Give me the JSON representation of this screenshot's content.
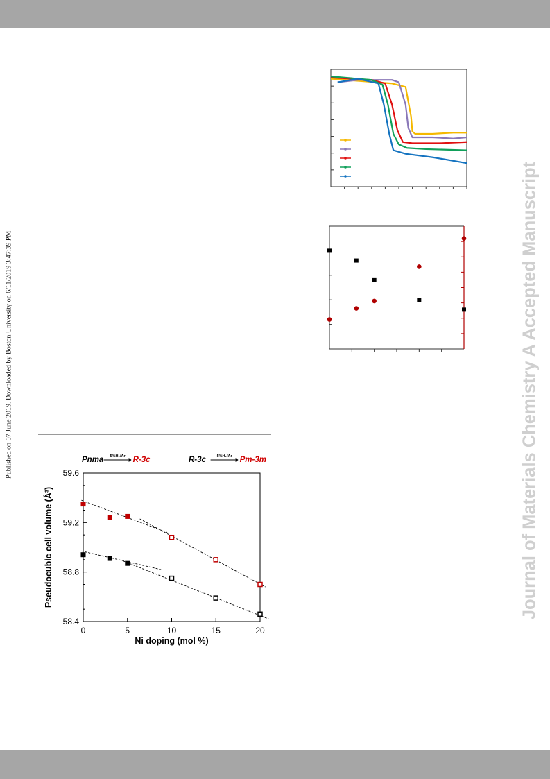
{
  "header": {},
  "footer": {},
  "watermark": "Journal of Materials Chemistry A Accepted Manuscript",
  "publication_note": "Published on 07 June 2019. Downloaded by Boston University on 6/11/2019 3:47:39 PM.",
  "chart_data": [
    {
      "type": "line",
      "title": "",
      "xlabel": "",
      "ylabel": "",
      "legend_position": "left",
      "series": [
        {
          "name": "",
          "color": "#f5b800",
          "points": [
            [
              0,
              0.92
            ],
            [
              0.45,
              0.88
            ],
            [
              0.55,
              0.85
            ],
            [
              0.59,
              0.6
            ],
            [
              0.6,
              0.47
            ],
            [
              0.62,
              0.45
            ],
            [
              0.75,
              0.45
            ],
            [
              0.9,
              0.46
            ],
            [
              1,
              0.46
            ]
          ]
        },
        {
          "name": "",
          "color": "#8a78b8",
          "points": [
            [
              0.05,
              0.89
            ],
            [
              0.2,
              0.91
            ],
            [
              0.45,
              0.91
            ],
            [
              0.5,
              0.89
            ],
            [
              0.55,
              0.7
            ],
            [
              0.57,
              0.5
            ],
            [
              0.6,
              0.42
            ],
            [
              0.75,
              0.42
            ],
            [
              0.9,
              0.41
            ],
            [
              1,
              0.42
            ]
          ]
        },
        {
          "name": "",
          "color": "#e01010",
          "points": [
            [
              0,
              0.93
            ],
            [
              0.3,
              0.91
            ],
            [
              0.4,
              0.88
            ],
            [
              0.45,
              0.7
            ],
            [
              0.49,
              0.48
            ],
            [
              0.53,
              0.38
            ],
            [
              0.6,
              0.37
            ],
            [
              0.8,
              0.37
            ],
            [
              1,
              0.38
            ]
          ]
        },
        {
          "name": "",
          "color": "#11a05a",
          "points": [
            [
              0,
              0.94
            ],
            [
              0.3,
              0.91
            ],
            [
              0.38,
              0.87
            ],
            [
              0.42,
              0.7
            ],
            [
              0.46,
              0.45
            ],
            [
              0.5,
              0.36
            ],
            [
              0.56,
              0.33
            ],
            [
              0.7,
              0.32
            ],
            [
              1,
              0.31
            ]
          ]
        },
        {
          "name": "",
          "color": "#1473c0",
          "points": [
            [
              0.05,
              0.89
            ],
            [
              0.2,
              0.92
            ],
            [
              0.35,
              0.88
            ],
            [
              0.39,
              0.7
            ],
            [
              0.43,
              0.45
            ],
            [
              0.46,
              0.31
            ],
            [
              0.55,
              0.28
            ],
            [
              0.75,
              0.25
            ],
            [
              1,
              0.2
            ]
          ]
        }
      ]
    },
    {
      "type": "scatter",
      "title": "",
      "xlabel": "",
      "ylabel": "",
      "y2label": "",
      "xlim": [
        0,
        30
      ],
      "series": [
        {
          "name": "",
          "marker": "square",
          "color": "#000000",
          "axis": "left",
          "x": [
            0,
            6,
            10,
            20,
            30
          ],
          "y": [
            0.8,
            0.72,
            0.56,
            0.4,
            0.32
          ]
        },
        {
          "name": "",
          "marker": "circle",
          "color": "#b00000",
          "axis": "right",
          "x": [
            0,
            6,
            10,
            20,
            30
          ],
          "y": [
            0.24,
            0.33,
            0.39,
            0.67,
            0.9
          ]
        }
      ]
    },
    {
      "type": "scatter",
      "title": "",
      "xlabel": "Ni doping (mol %)",
      "ylabel": "Pseudocubic cell volume (Å³)",
      "xlim": [
        0,
        20
      ],
      "ylim": [
        58.4,
        59.6
      ],
      "grid": false,
      "xticks": [
        "0",
        "5",
        "10",
        "15",
        "20"
      ],
      "yticks": [
        "58.4",
        "58.8",
        "59.2",
        "59.6"
      ],
      "annotations": {
        "left": {
          "from": "Pnma",
          "arrow": "5%H₂/Ar",
          "to": "R-3c"
        },
        "right": {
          "from": "R-3c",
          "arrow": "5%H₂/Ar",
          "to": "Pm-3m"
        }
      },
      "series": [
        {
          "name": "",
          "color": "#c00000",
          "marker": "square",
          "points": [
            [
              0,
              59.35,
              true
            ],
            [
              3,
              59.24,
              true
            ],
            [
              5,
              59.25,
              true
            ],
            [
              10,
              59.08,
              false
            ],
            [
              15,
              58.9,
              false
            ],
            [
              20,
              58.7,
              false
            ]
          ]
        },
        {
          "name": "",
          "color": "#000000",
          "marker": "square",
          "points": [
            [
              0,
              58.94,
              true
            ],
            [
              3,
              58.91,
              true
            ],
            [
              5,
              58.87,
              true
            ],
            [
              10,
              58.75,
              false
            ],
            [
              15,
              58.59,
              false
            ],
            [
              20,
              58.46,
              false
            ]
          ]
        }
      ],
      "trend_lines": [
        [
          [
            -0.2,
            59.38
          ],
          [
            9.5,
            59.12
          ]
        ],
        [
          [
            6.4,
            59.23
          ],
          [
            20.6,
            58.68
          ]
        ],
        [
          [
            -0.2,
            58.97
          ],
          [
            8.8,
            58.82
          ]
        ],
        [
          [
            4.5,
            58.89
          ],
          [
            21,
            58.42
          ]
        ]
      ]
    }
  ]
}
